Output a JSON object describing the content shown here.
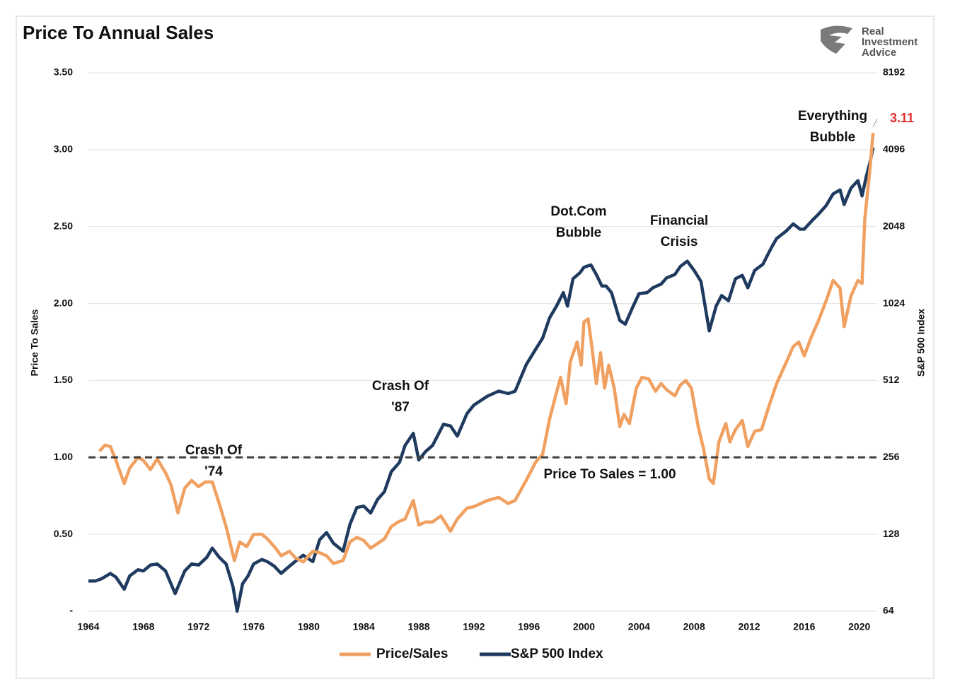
{
  "chart_data": {
    "type": "line",
    "title": "Price To Annual Sales",
    "y_label": "Price To Sales",
    "y2_label": "S&P 500 Index",
    "logo": [
      "Real",
      "Investment",
      "Advice"
    ],
    "xlim": [
      1964,
      2021.3
    ],
    "xticks": [
      1964,
      1968,
      1972,
      1976,
      1980,
      1984,
      1988,
      1992,
      1996,
      2000,
      2004,
      2008,
      2012,
      2016,
      2020
    ],
    "ylim": [
      0,
      3.5
    ],
    "yticks": [
      {
        "value": 0,
        "label": "-"
      },
      {
        "value": 0.5,
        "label": "0.50"
      },
      {
        "value": 1,
        "label": "1.00"
      },
      {
        "value": 1.5,
        "label": "1.50"
      },
      {
        "value": 2,
        "label": "2.00"
      },
      {
        "value": 2.5,
        "label": "2.50"
      },
      {
        "value": 3,
        "label": "3.00"
      },
      {
        "value": 3.5,
        "label": "3.50"
      }
    ],
    "y2lim": [
      64,
      8192
    ],
    "y2ticks": [
      64,
      128,
      256,
      512,
      1024,
      2048,
      4096,
      8192
    ],
    "y2log": true,
    "grid": true,
    "legend": "bottom",
    "reference": {
      "value": 1,
      "label": "Price To Sales = 1.00",
      "color": "#404040"
    },
    "annotations": [
      [
        "Crash Of",
        "'74"
      ],
      [
        "Crash Of",
        "'87"
      ],
      [
        "Dot.Com",
        "Bubble"
      ],
      [
        "Financial",
        "Crisis"
      ],
      [
        "Everything",
        "Bubble"
      ]
    ],
    "end_label_color": "#e03030",
    "series": [
      {
        "name": "Price/Sales",
        "color": "#f0a060",
        "axis": "y",
        "x": [
          1964.8,
          1965.2,
          1965.6,
          1966.0,
          1966.6,
          1967.0,
          1967.6,
          1968.0,
          1968.5,
          1969.0,
          1969.6,
          1970.0,
          1970.5,
          1971.0,
          1971.5,
          1972.0,
          1972.5,
          1973.0,
          1973.5,
          1974.0,
          1974.6,
          1975.0,
          1975.5,
          1976.0,
          1976.6,
          1977.0,
          1977.6,
          1978.0,
          1978.6,
          1979.0,
          1979.6,
          1980.3,
          1980.8,
          1981.3,
          1981.8,
          1982.5,
          1983.0,
          1983.5,
          1984.0,
          1984.5,
          1985.0,
          1985.5,
          1986.0,
          1986.5,
          1987.0,
          1987.6,
          1988.0,
          1988.5,
          1989.0,
          1989.6,
          1990.3,
          1990.8,
          1991.5,
          1992.0,
          1993.0,
          1993.8,
          1994.5,
          1995.0,
          1995.8,
          1996.5,
          1997.0,
          1997.5,
          1998.0,
          1998.3,
          1998.7,
          1999.0,
          1999.5,
          1999.8,
          2000.0,
          2000.3,
          2000.6,
          2000.9,
          2001.2,
          2001.5,
          2001.8,
          2002.2,
          2002.6,
          2002.9,
          2003.3,
          2003.8,
          2004.2,
          2004.7,
          2005.2,
          2005.6,
          2006.0,
          2006.6,
          2007.0,
          2007.4,
          2007.8,
          2008.3,
          2008.7,
          2009.1,
          2009.4,
          2009.8,
          2010.3,
          2010.6,
          2011.0,
          2011.5,
          2011.9,
          2012.4,
          2012.9,
          2013.5,
          2014.0,
          2014.7,
          2015.2,
          2015.6,
          2016.0,
          2016.5,
          2017.0,
          2017.6,
          2018.1,
          2018.6,
          2018.9,
          2019.4,
          2019.9,
          2020.2,
          2020.4,
          2020.8,
          2021.0
        ],
        "values": [
          1.04,
          1.08,
          1.07,
          0.98,
          0.83,
          0.93,
          1.0,
          0.98,
          0.92,
          0.99,
          0.9,
          0.82,
          0.64,
          0.8,
          0.85,
          0.81,
          0.84,
          0.84,
          0.7,
          0.55,
          0.33,
          0.45,
          0.42,
          0.5,
          0.5,
          0.47,
          0.41,
          0.36,
          0.39,
          0.35,
          0.32,
          0.39,
          0.38,
          0.36,
          0.31,
          0.33,
          0.45,
          0.48,
          0.46,
          0.41,
          0.44,
          0.47,
          0.55,
          0.58,
          0.6,
          0.72,
          0.56,
          0.58,
          0.58,
          0.62,
          0.52,
          0.6,
          0.67,
          0.68,
          0.72,
          0.74,
          0.7,
          0.72,
          0.85,
          0.97,
          1.02,
          1.25,
          1.42,
          1.52,
          1.35,
          1.62,
          1.75,
          1.6,
          1.88,
          1.9,
          1.7,
          1.48,
          1.68,
          1.45,
          1.6,
          1.45,
          1.2,
          1.28,
          1.22,
          1.45,
          1.52,
          1.51,
          1.43,
          1.48,
          1.44,
          1.4,
          1.47,
          1.5,
          1.45,
          1.2,
          1.05,
          0.86,
          0.83,
          1.1,
          1.22,
          1.1,
          1.18,
          1.24,
          1.07,
          1.17,
          1.18,
          1.35,
          1.48,
          1.62,
          1.72,
          1.75,
          1.66,
          1.78,
          1.88,
          2.02,
          2.15,
          2.1,
          1.85,
          2.05,
          2.15,
          2.13,
          2.55,
          2.9,
          3.11
        ]
      },
      {
        "name": "S&P 500 Index",
        "color": "#1f3a5f",
        "axis": "y2",
        "x": [
          1964.0,
          1964.5,
          1965.0,
          1965.6,
          1966.0,
          1966.6,
          1967.0,
          1967.6,
          1968.0,
          1968.5,
          1969.0,
          1969.6,
          1970.3,
          1971.0,
          1971.5,
          1972.0,
          1972.6,
          1973.0,
          1973.5,
          1974.0,
          1974.5,
          1974.8,
          1975.2,
          1975.6,
          1976.0,
          1976.6,
          1977.0,
          1977.5,
          1978.0,
          1978.5,
          1979.0,
          1979.6,
          1980.3,
          1980.8,
          1981.3,
          1981.8,
          1982.5,
          1983.0,
          1983.5,
          1984.0,
          1984.5,
          1985.0,
          1985.5,
          1986.0,
          1986.6,
          1987.0,
          1987.6,
          1988.0,
          1988.5,
          1989.0,
          1989.8,
          1990.3,
          1990.8,
          1991.5,
          1992.0,
          1993.0,
          1993.8,
          1994.5,
          1995.0,
          1995.8,
          1996.5,
          1997.0,
          1997.5,
          1998.0,
          1998.5,
          1998.8,
          1999.2,
          1999.7,
          2000.0,
          2000.5,
          2000.9,
          2001.3,
          2001.6,
          2002.0,
          2002.6,
          2003.0,
          2003.5,
          2004.0,
          2004.6,
          2005.0,
          2005.6,
          2006.0,
          2006.6,
          2007.0,
          2007.5,
          2008.0,
          2008.5,
          2009.1,
          2009.6,
          2010.0,
          2010.5,
          2011.0,
          2011.5,
          2011.9,
          2012.4,
          2013.0,
          2013.6,
          2014.0,
          2014.7,
          2015.2,
          2015.7,
          2016.0,
          2016.6,
          2017.0,
          2017.6,
          2018.1,
          2018.6,
          2018.9,
          2019.4,
          2019.9,
          2020.2,
          2020.5,
          2020.8,
          2021.0
        ],
        "values": [
          84,
          84,
          86,
          90,
          87,
          78,
          88,
          93,
          92,
          97,
          98,
          92,
          75,
          92,
          98,
          97,
          104,
          113,
          104,
          98,
          80,
          64,
          82,
          88,
          98,
          102,
          100,
          96,
          90,
          95,
          100,
          106,
          100,
          122,
          130,
          118,
          110,
          140,
          163,
          165,
          155,
          175,
          188,
          225,
          245,
          285,
          318,
          250,
          270,
          285,
          345,
          340,
          310,
          380,
          410,
          445,
          465,
          455,
          465,
          590,
          680,
          750,
          900,
          1000,
          1130,
          1000,
          1280,
          1350,
          1420,
          1450,
          1330,
          1200,
          1200,
          1130,
          880,
          850,
          980,
          1120,
          1130,
          1180,
          1220,
          1290,
          1330,
          1430,
          1500,
          1380,
          1250,
          800,
          1000,
          1100,
          1050,
          1280,
          1320,
          1180,
          1380,
          1460,
          1690,
          1840,
          1970,
          2100,
          2000,
          2000,
          2170,
          2280,
          2480,
          2750,
          2850,
          2500,
          2900,
          3100,
          2700,
          3200,
          3700,
          4180
        ]
      }
    ]
  }
}
